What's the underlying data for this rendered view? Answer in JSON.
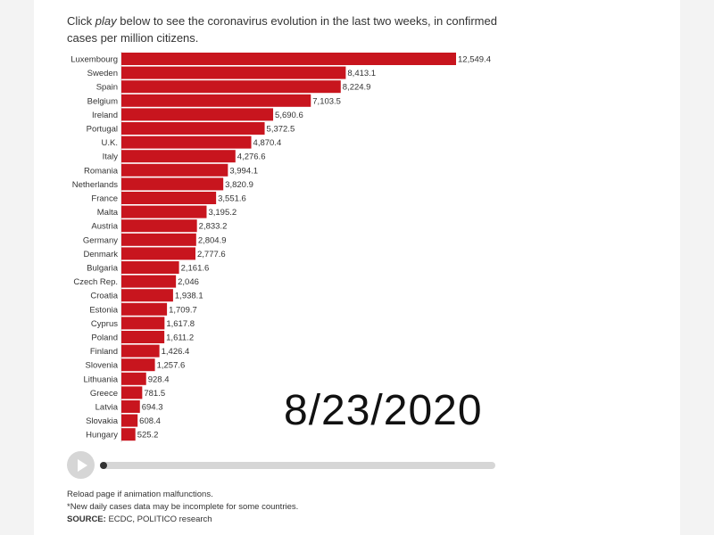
{
  "intro": {
    "prefix": "Click ",
    "play_word": "play",
    "suffix": " below to see the coronavirus evolution in the last two weeks, in confirmed cases per million citizens."
  },
  "chart_data": {
    "type": "bar",
    "orientation": "horizontal",
    "categories": [
      "Luxembourg",
      "Sweden",
      "Spain",
      "Belgium",
      "Ireland",
      "Portugal",
      "U.K.",
      "Italy",
      "Romania",
      "Netherlands",
      "France",
      "Malta",
      "Austria",
      "Germany",
      "Denmark",
      "Bulgaria",
      "Czech Rep.",
      "Croatia",
      "Estonia",
      "Cyprus",
      "Poland",
      "Finland",
      "Slovenia",
      "Lithuania",
      "Greece",
      "Latvia",
      "Slovakia",
      "Hungary"
    ],
    "values": [
      12549.4,
      8413.1,
      8224.9,
      7103.5,
      5690.6,
      5372.5,
      4870.4,
      4276.6,
      3994.1,
      3820.9,
      3551.6,
      3195.2,
      2833.2,
      2804.9,
      2777.6,
      2161.6,
      2046,
      1938.1,
      1709.7,
      1617.8,
      1611.2,
      1426.4,
      1257.6,
      928.4,
      781.5,
      694.3,
      608.4,
      525.2
    ],
    "value_labels": [
      "12,549.4",
      "8,413.1",
      "8,224.9",
      "7,103.5",
      "5,690.6",
      "5,372.5",
      "4,870.4",
      "4,276.6",
      "3,994.1",
      "3,820.9",
      "3,551.6",
      "3,195.2",
      "2,833.2",
      "2,804.9",
      "2,777.6",
      "2,161.6",
      "2,046",
      "1,938.1",
      "1,709.7",
      "1,617.8",
      "1,611.2",
      "1,426.4",
      "1,257.6",
      "928.4",
      "781.5",
      "694.3",
      "608.4",
      "525.2"
    ],
    "xlim": [
      0,
      12549.4
    ],
    "bar_color": "#c8151e",
    "grid": false,
    "date": "8/23/2020"
  },
  "player": {
    "play_icon": "play-icon",
    "progress": 0.0
  },
  "footnotes": {
    "line1": "Reload page if animation malfunctions.",
    "line2": "*New daily cases data may be incomplete for some countries.",
    "source_label": "SOURCE:",
    "source_text": " ECDC, POLITICO research"
  }
}
